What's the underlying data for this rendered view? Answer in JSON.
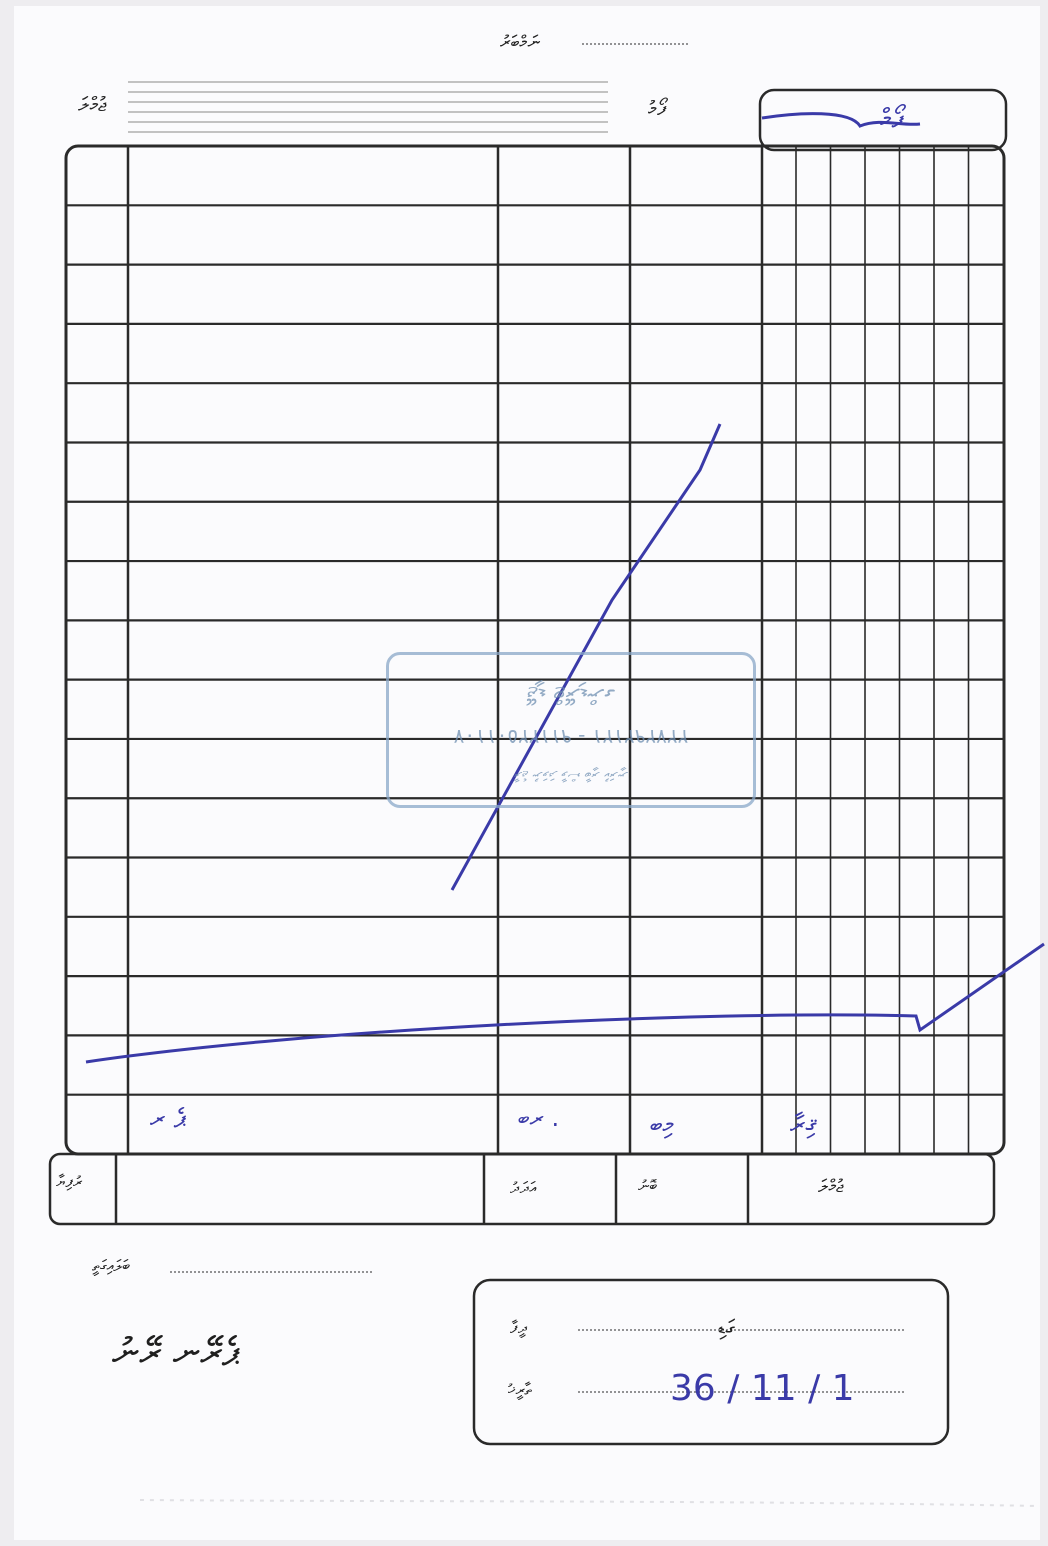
{
  "header": {
    "top_label": "ނަމްބަރު",
    "left_label": "ޖުމްލަ",
    "right_label": "ފޯމު",
    "form_number_hw": "ފޯމް"
  },
  "table": {
    "rows_visible": 17
  },
  "totals_row": {
    "col_a": "ރުފިޔާ",
    "col_b": "ބޮނު",
    "col_c": "އަދަދު",
    "col_d": "ޖުމްލަ"
  },
  "totals_handwritten": {
    "a": "ޕެ ރ",
    "b": "ރބ .",
    "c": "މިބ",
    "d": "ޤިރާ"
  },
  "footer_labels": {
    "recipient_label": "ބަލައިގަތީ",
    "signature_hw": "ޕެރޭނ ރޭނު"
  },
  "stamp": {
    "line1": "ޖޭޑީ ޓްރޭޑިންގ",
    "line2": "٩١١٢٢٥٠١١٠٧ - ٢٢٧٢٩٢١٢١",
    "line3": "ރާޖެ ނުވަދަ ވާސް ބާރީ ކުރަނީ"
  },
  "date_box": {
    "label_top": "ގަޑި",
    "label_top_right": "ދީފާ",
    "label_bottom": "ތާރީޚު",
    "date_hw": "36 / 11 / 1"
  },
  "colors": {
    "ink": "#2a2a2a",
    "pen": "#3a3aa8",
    "stamp": "#8aa8c8"
  }
}
